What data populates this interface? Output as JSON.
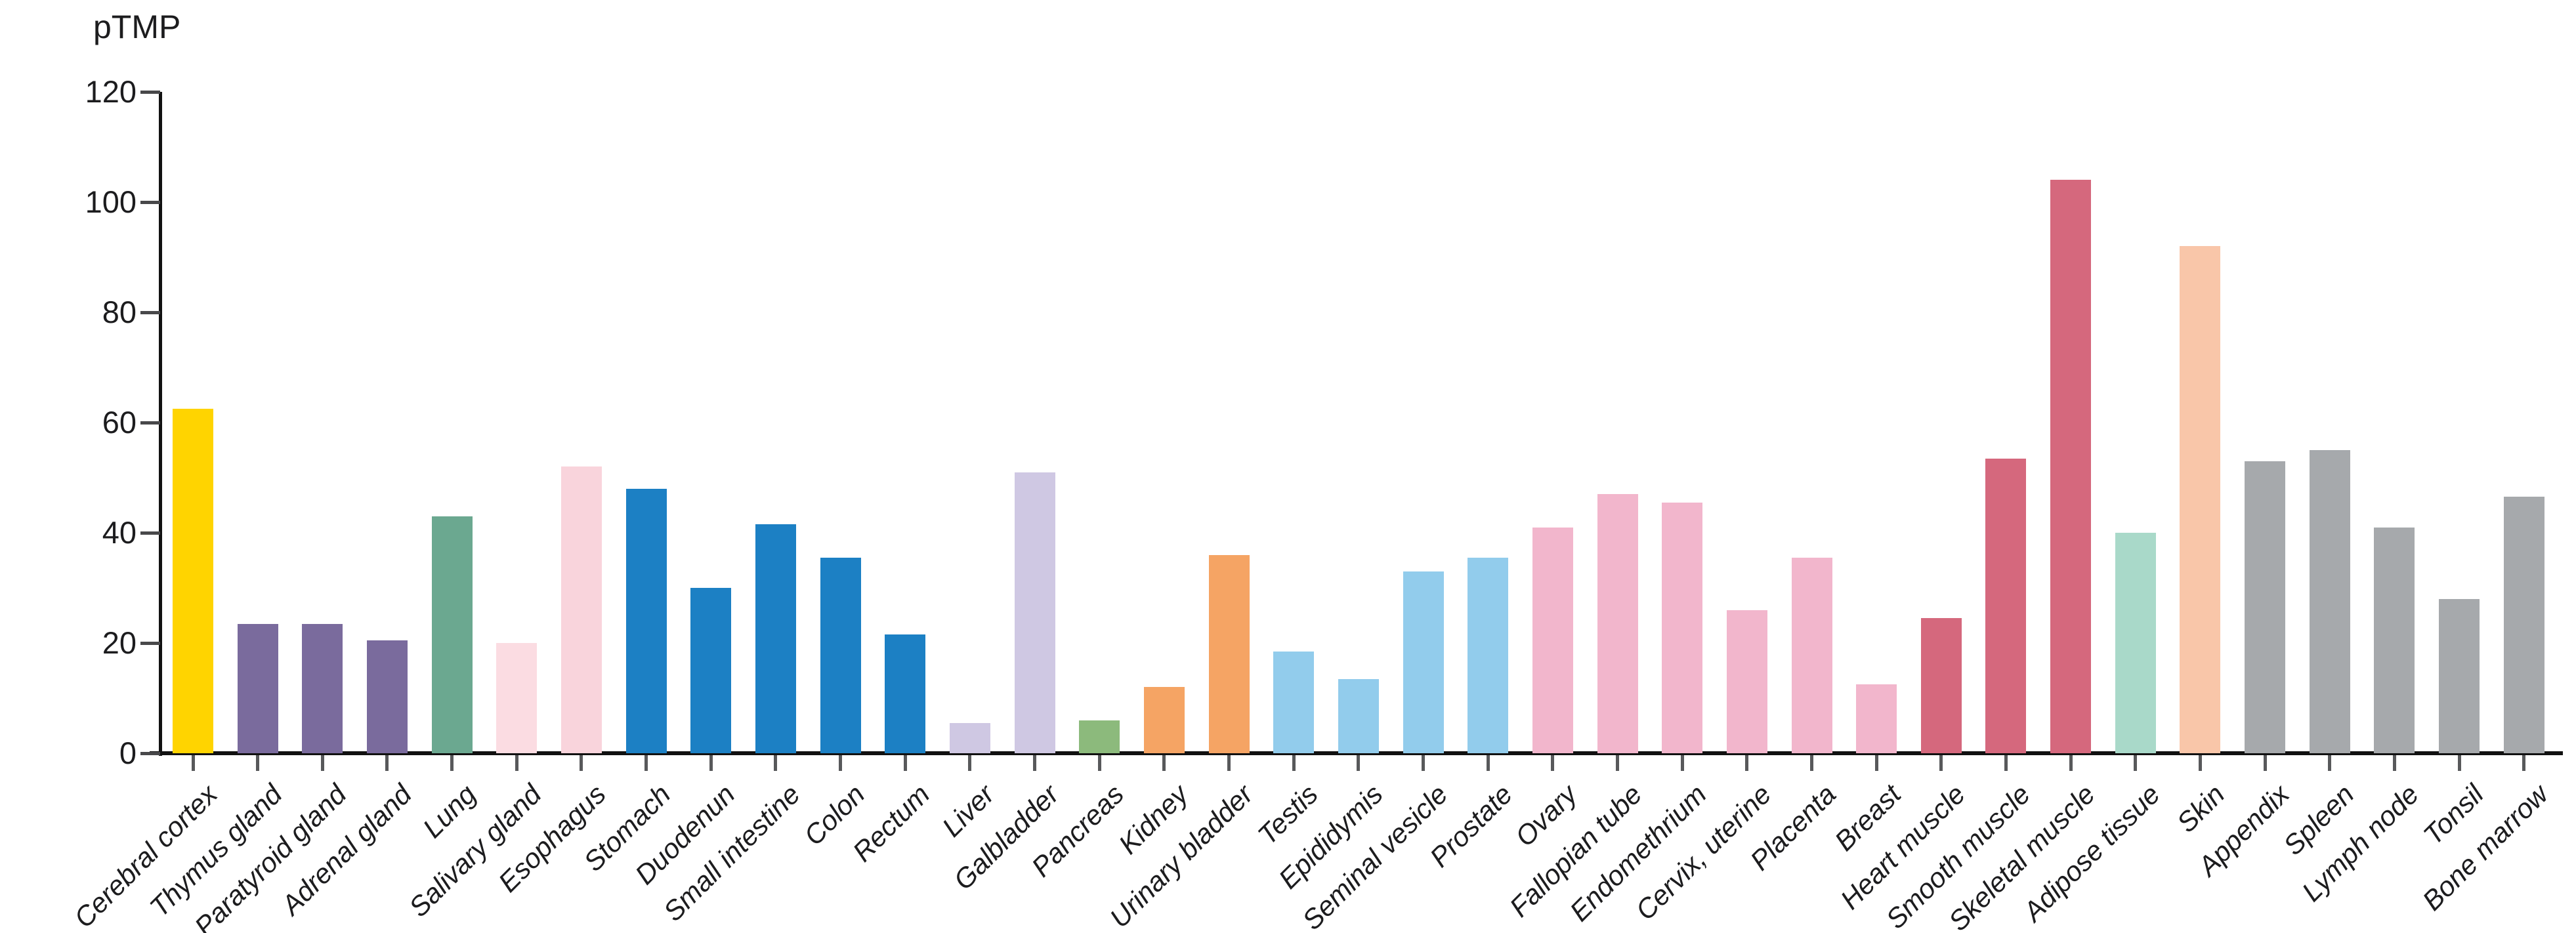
{
  "chart_data": {
    "type": "bar",
    "title": "",
    "ylabel": "pTMP",
    "xlabel": "",
    "ylim": [
      0,
      120
    ],
    "yticks": [
      0,
      20,
      40,
      60,
      80,
      100,
      120
    ],
    "grid": false,
    "legend_position": "none",
    "categories": [
      "Cerebral cortex",
      "Thymus gland",
      "Paratyroid gland",
      "Adrenal gland",
      "Lung",
      "Salivary gland",
      "Esophagus",
      "Stomach",
      "Duodenun",
      "Small intestine",
      "Colon",
      "Rectum",
      "Liver",
      "Galbladder",
      "Pancreas",
      "Kidney",
      "Urinary bladder",
      "Testis",
      "Epididymis",
      "Seminal vesicle",
      "Prostate",
      "Ovary",
      "Fallopian tube",
      "Endomethrium",
      "Cervix, uterine",
      "Placenta",
      "Breast",
      "Heart muscle",
      "Smooth muscle",
      "Skeletal muscle",
      "Adipose tissue",
      "Skin",
      "Appendix",
      "Spleen",
      "Lymph node",
      "Tonsil",
      "Bone marrow"
    ],
    "values": [
      62.5,
      23.5,
      23.5,
      20.5,
      43,
      20,
      52,
      48,
      30,
      41.5,
      35.5,
      21.5,
      5.5,
      51,
      6,
      12,
      36,
      18.5,
      13.5,
      33,
      35.5,
      41,
      47,
      45.5,
      26,
      35.5,
      12.5,
      24.5,
      53.5,
      104,
      40,
      92,
      53,
      55,
      41,
      28,
      46.5
    ],
    "bar_colors": [
      "#FFD400",
      "#7A6B9D",
      "#7A6B9D",
      "#7A6B9D",
      "#6BA890",
      "#FBDCE2",
      "#F9D4DC",
      "#1C80C4",
      "#1C80C4",
      "#1C80C4",
      "#1C80C4",
      "#1C80C4",
      "#CFC8E3",
      "#CFC8E3",
      "#8CBA7C",
      "#F5A464",
      "#F5A464",
      "#92CCEC",
      "#92CCEC",
      "#92CCEC",
      "#92CCEC",
      "#F2B6CC",
      "#F2B6CC",
      "#F2B6CC",
      "#F2B6CC",
      "#F2B6CC",
      "#F2B6CC",
      "#D5687D",
      "#D5687D",
      "#D5687D",
      "#A9D9C9",
      "#F9C6A9",
      "#A6A9AC",
      "#A6A9AC",
      "#A6A9AC",
      "#A6A9AC",
      "#A6A9AC"
    ],
    "axis_color": "#111111",
    "ytick_color": "#48484a",
    "xtick_color": "#58595b",
    "label_color": "#1c1c1e"
  }
}
